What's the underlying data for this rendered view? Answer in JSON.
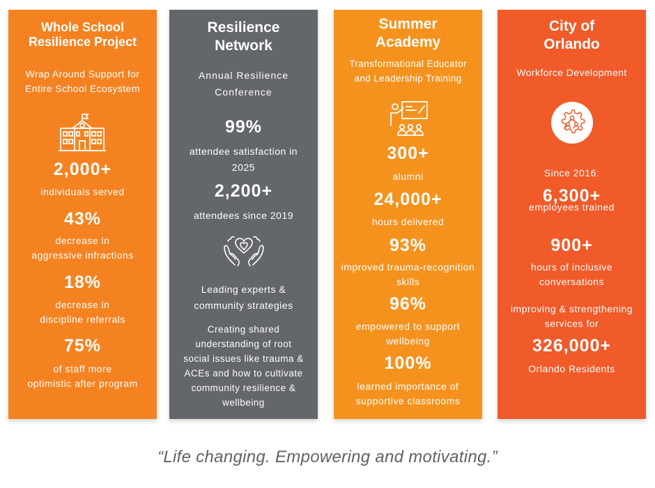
{
  "cards": [
    {
      "title": "Whole School\nResilience Project",
      "subtitle": "Wrap Around Support for\nEntire School Ecosystem",
      "icon": "school-building-icon",
      "stats": [
        {
          "value": "2,000+",
          "label": "individuals served"
        },
        {
          "value": "43%",
          "label": "decrease in\naggressive infractions"
        },
        {
          "value": "18%",
          "label": "decrease in\ndiscipline referrals"
        },
        {
          "value": "75%",
          "label": "of staff more\noptimistic after program"
        }
      ]
    },
    {
      "title": "Resilience\nNetwork",
      "subtitle": "Annual Resilience\nConference",
      "icon": "hands-heart-icon",
      "stats": [
        {
          "value": "99%",
          "label": "attendee satisfaction in\n2025"
        },
        {
          "value": "2,200+",
          "label": "attendees since 2019"
        }
      ],
      "feature": "Leading experts &\ncommunity strategies",
      "body": "Creating shared\nunderstanding of root\nsocial issues like trauma &\nACEs and how to cultivate\ncommunity resilience &\nwellbeing"
    },
    {
      "title": "Summer\nAcademy",
      "subtitle": "Transformational Educator\nand Leadership Training",
      "icon": "teacher-presentation-icon",
      "stats": [
        {
          "value": "300+",
          "label": "alumni"
        },
        {
          "value": "24,000+",
          "label": "hours delivered"
        },
        {
          "value": "93%",
          "label": "improved trauma-recognition\nskills"
        },
        {
          "value": "96%",
          "label": "empowered to support\nwellbeing"
        },
        {
          "value": "100%",
          "label": "learned importance of\nsupportive classrooms"
        }
      ]
    },
    {
      "title": "City of\nOrlando",
      "subtitle": "Workforce Development",
      "icon": "workforce-gear-icon",
      "since": "Since 2016:",
      "stats": [
        {
          "value": "6,300+",
          "label": "employees trained"
        },
        {
          "value": "900+",
          "label": "hours of inclusive\nconversations"
        },
        {
          "value": "326,000+",
          "label": "Orlando Residents"
        }
      ],
      "improving": "improving & strengthening\nservices for"
    }
  ],
  "quote": "“Life changing. Empowering and motivating.”"
}
